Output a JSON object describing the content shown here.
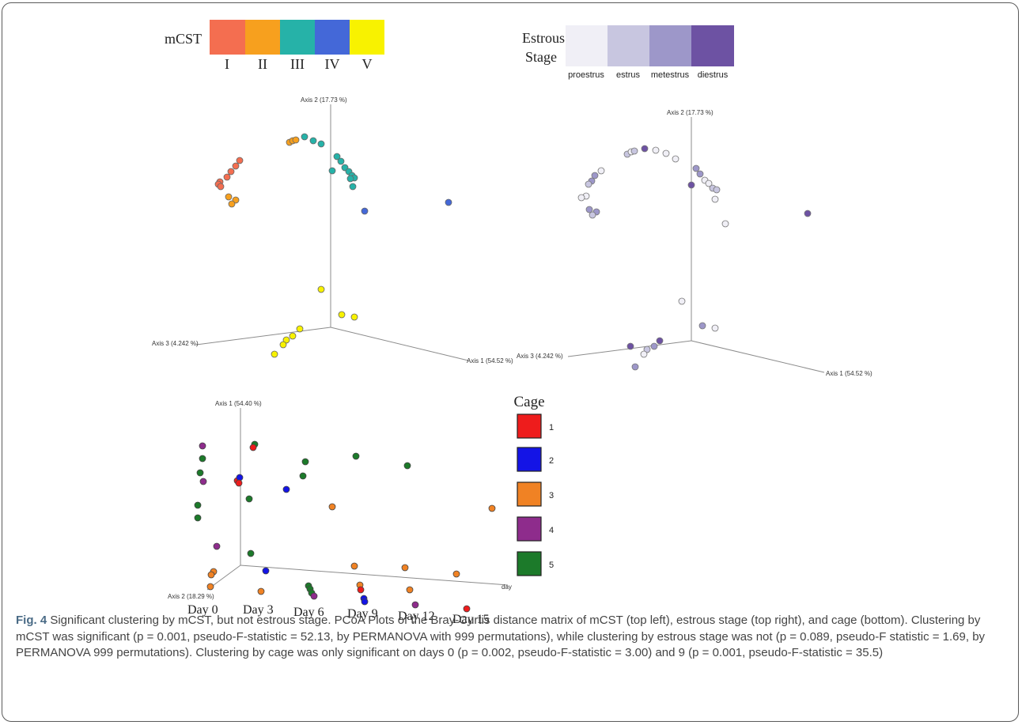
{
  "chart_data": [
    {
      "type": "scatter",
      "panel": "mCST PCoA (top left)",
      "axes": [
        "Axis 2 (17.73 %)",
        "Axis 3 (4.242 %)",
        "Axis 1 (54.52 %)"
      ],
      "legend": {
        "title": "mCST",
        "items": [
          {
            "label": "I",
            "color": "#f46e50"
          },
          {
            "label": "II",
            "color": "#f7a01e"
          },
          {
            "label": "III",
            "color": "#26b2a8"
          },
          {
            "label": "IV",
            "color": "#4468d8"
          },
          {
            "label": "V",
            "color": "#f8f200"
          }
        ]
      }
    },
    {
      "type": "scatter",
      "panel": "Estrous stage PCoA (top right)",
      "axes": [
        "Axis 2 (17.73 %)",
        "Axis 3 (4.242 %)",
        "Axis 1 (54.52 %)"
      ],
      "legend": {
        "title_line1": "Estrous",
        "title_line2": "Stage",
        "items": [
          {
            "label": "proestrus",
            "color": "#f0eff6"
          },
          {
            "label": "estrus",
            "color": "#c8c6e0"
          },
          {
            "label": "metestrus",
            "color": "#9d97c9"
          },
          {
            "label": "diestrus",
            "color": "#6d52a3"
          }
        ]
      }
    },
    {
      "type": "scatter",
      "panel": "Cage PCoA (bottom)",
      "axes": [
        "Axis 1 (54.40 %)",
        "Axis 2 (18.29 %)",
        "day"
      ],
      "day_labels": [
        "Day 0",
        "Day 3",
        "Day 6",
        "Day 9",
        "Day 12",
        "Day 15"
      ],
      "legend": {
        "title": "Cage",
        "items": [
          {
            "label": "1",
            "color": "#ee1c1c"
          },
          {
            "label": "2",
            "color": "#1414e6"
          },
          {
            "label": "3",
            "color": "#f08224"
          },
          {
            "label": "4",
            "color": "#8e2c8c"
          },
          {
            "label": "5",
            "color": "#1c7a2a"
          }
        ]
      }
    }
  ],
  "caption": {
    "fig_label": "Fig. 4",
    "text": " Significant clustering by mCST, but not estrous stage. PCoA Plots of the Bray-Curtis distance matrix of mCST (top left), estrous stage (top right), and cage (bottom). Clustering by mCST was significant (p = 0.001, pseudo-F-statistic = 52.13, by PERMANOVA with 999 permutations), while clustering by estrous stage was not (p = 0.089, pseudo-F statistic = 1.69, by PERMANOVA 999 permutations). Clustering by cage was only significant on days 0 (p = 0.002, pseudo-F-statistic = 3.00) and 9 (p = 0.001, pseudo-F-statistic = 35.5)"
  }
}
